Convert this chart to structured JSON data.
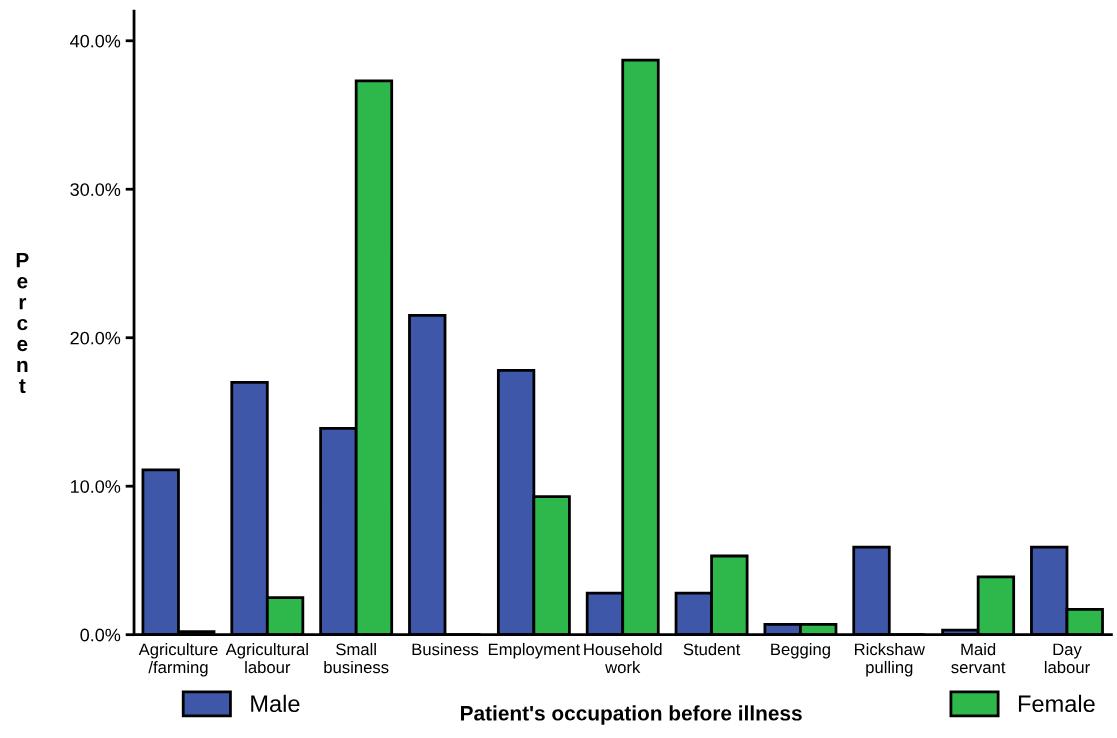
{
  "chart_data": {
    "type": "bar",
    "xlabel": "Patient's occupation before illness",
    "ylabel": "Percent",
    "categories": [
      "Agriculture\n/farming",
      "Agricultural\nlabour",
      "Small\nbusiness",
      "Business",
      "Employment",
      "Household\nwork",
      "Student",
      "Begging",
      "Rickshaw\npulling",
      "Maid\nservant",
      "Day\nlabour"
    ],
    "series": [
      {
        "name": "Male",
        "color": "#3f57a9",
        "values": [
          11.1,
          17.0,
          13.9,
          21.5,
          17.8,
          2.8,
          2.8,
          0.7,
          5.9,
          0.3,
          5.9
        ]
      },
      {
        "name": "Female",
        "color": "#2eb84b",
        "values": [
          0.2,
          2.5,
          37.3,
          0.0,
          9.3,
          38.7,
          5.3,
          0.7,
          0.0,
          3.9,
          1.7
        ]
      }
    ],
    "ylim": [
      0,
      42
    ],
    "yticks": [
      {
        "value": 0,
        "label": "0.0%"
      },
      {
        "value": 10,
        "label": "10.0%"
      },
      {
        "value": 20,
        "label": "20.0%"
      },
      {
        "value": 30,
        "label": "30.0%"
      },
      {
        "value": 40,
        "label": "40.0%"
      }
    ],
    "grid": false,
    "legend": "bottom"
  }
}
